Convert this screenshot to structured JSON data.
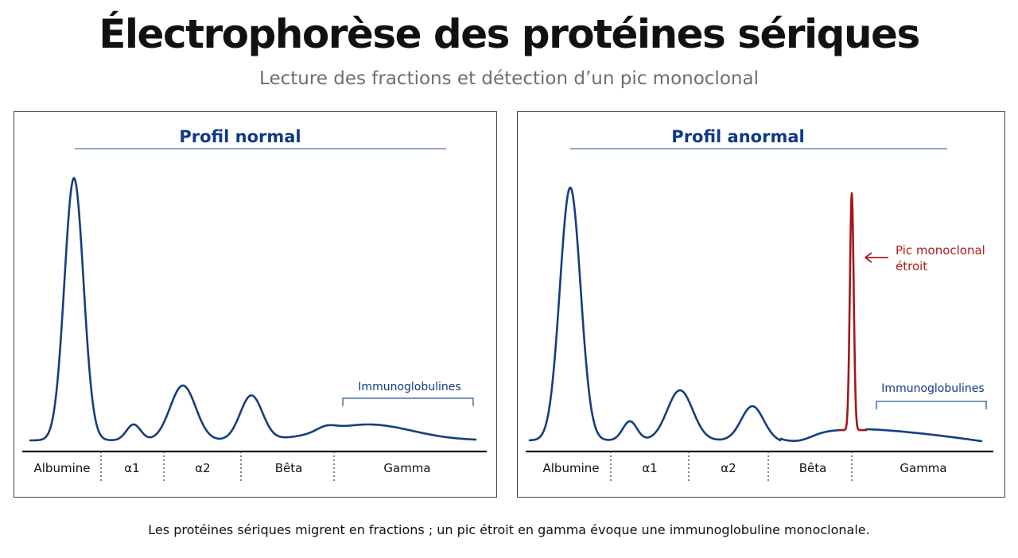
{
  "title": "Électrophorèse des protéines sériques",
  "subtitle": "Lecture des fractions et détection d’un pic monoclonal",
  "footer": "Les protéines sériques migrent en fractions ; un pic étroit en gamma évoque une immunoglobuline monoclonale.",
  "colors": {
    "curve": "#143f7e",
    "monoclonal_peak": "#a01818",
    "panel_title": "#0f3a86",
    "text": "#111111",
    "subtitle": "#6e6e6e"
  },
  "panels": {
    "normal": {
      "title": "Profil normal",
      "bracket_label": "Immunoglobulines",
      "fractions": [
        "Albumine",
        "α1",
        "α2",
        "Bêta",
        "Gamma"
      ]
    },
    "anormal": {
      "title": "Profil anormal",
      "bracket_label": "Immunoglobulines",
      "fractions": [
        "Albumine",
        "α1",
        "α2",
        "Bêta",
        "Gamma"
      ],
      "annotation_line1": "Pic monoclonal",
      "annotation_line2": "étroit",
      "annotation_arrow_icon": "arrow-left-icon"
    }
  }
}
